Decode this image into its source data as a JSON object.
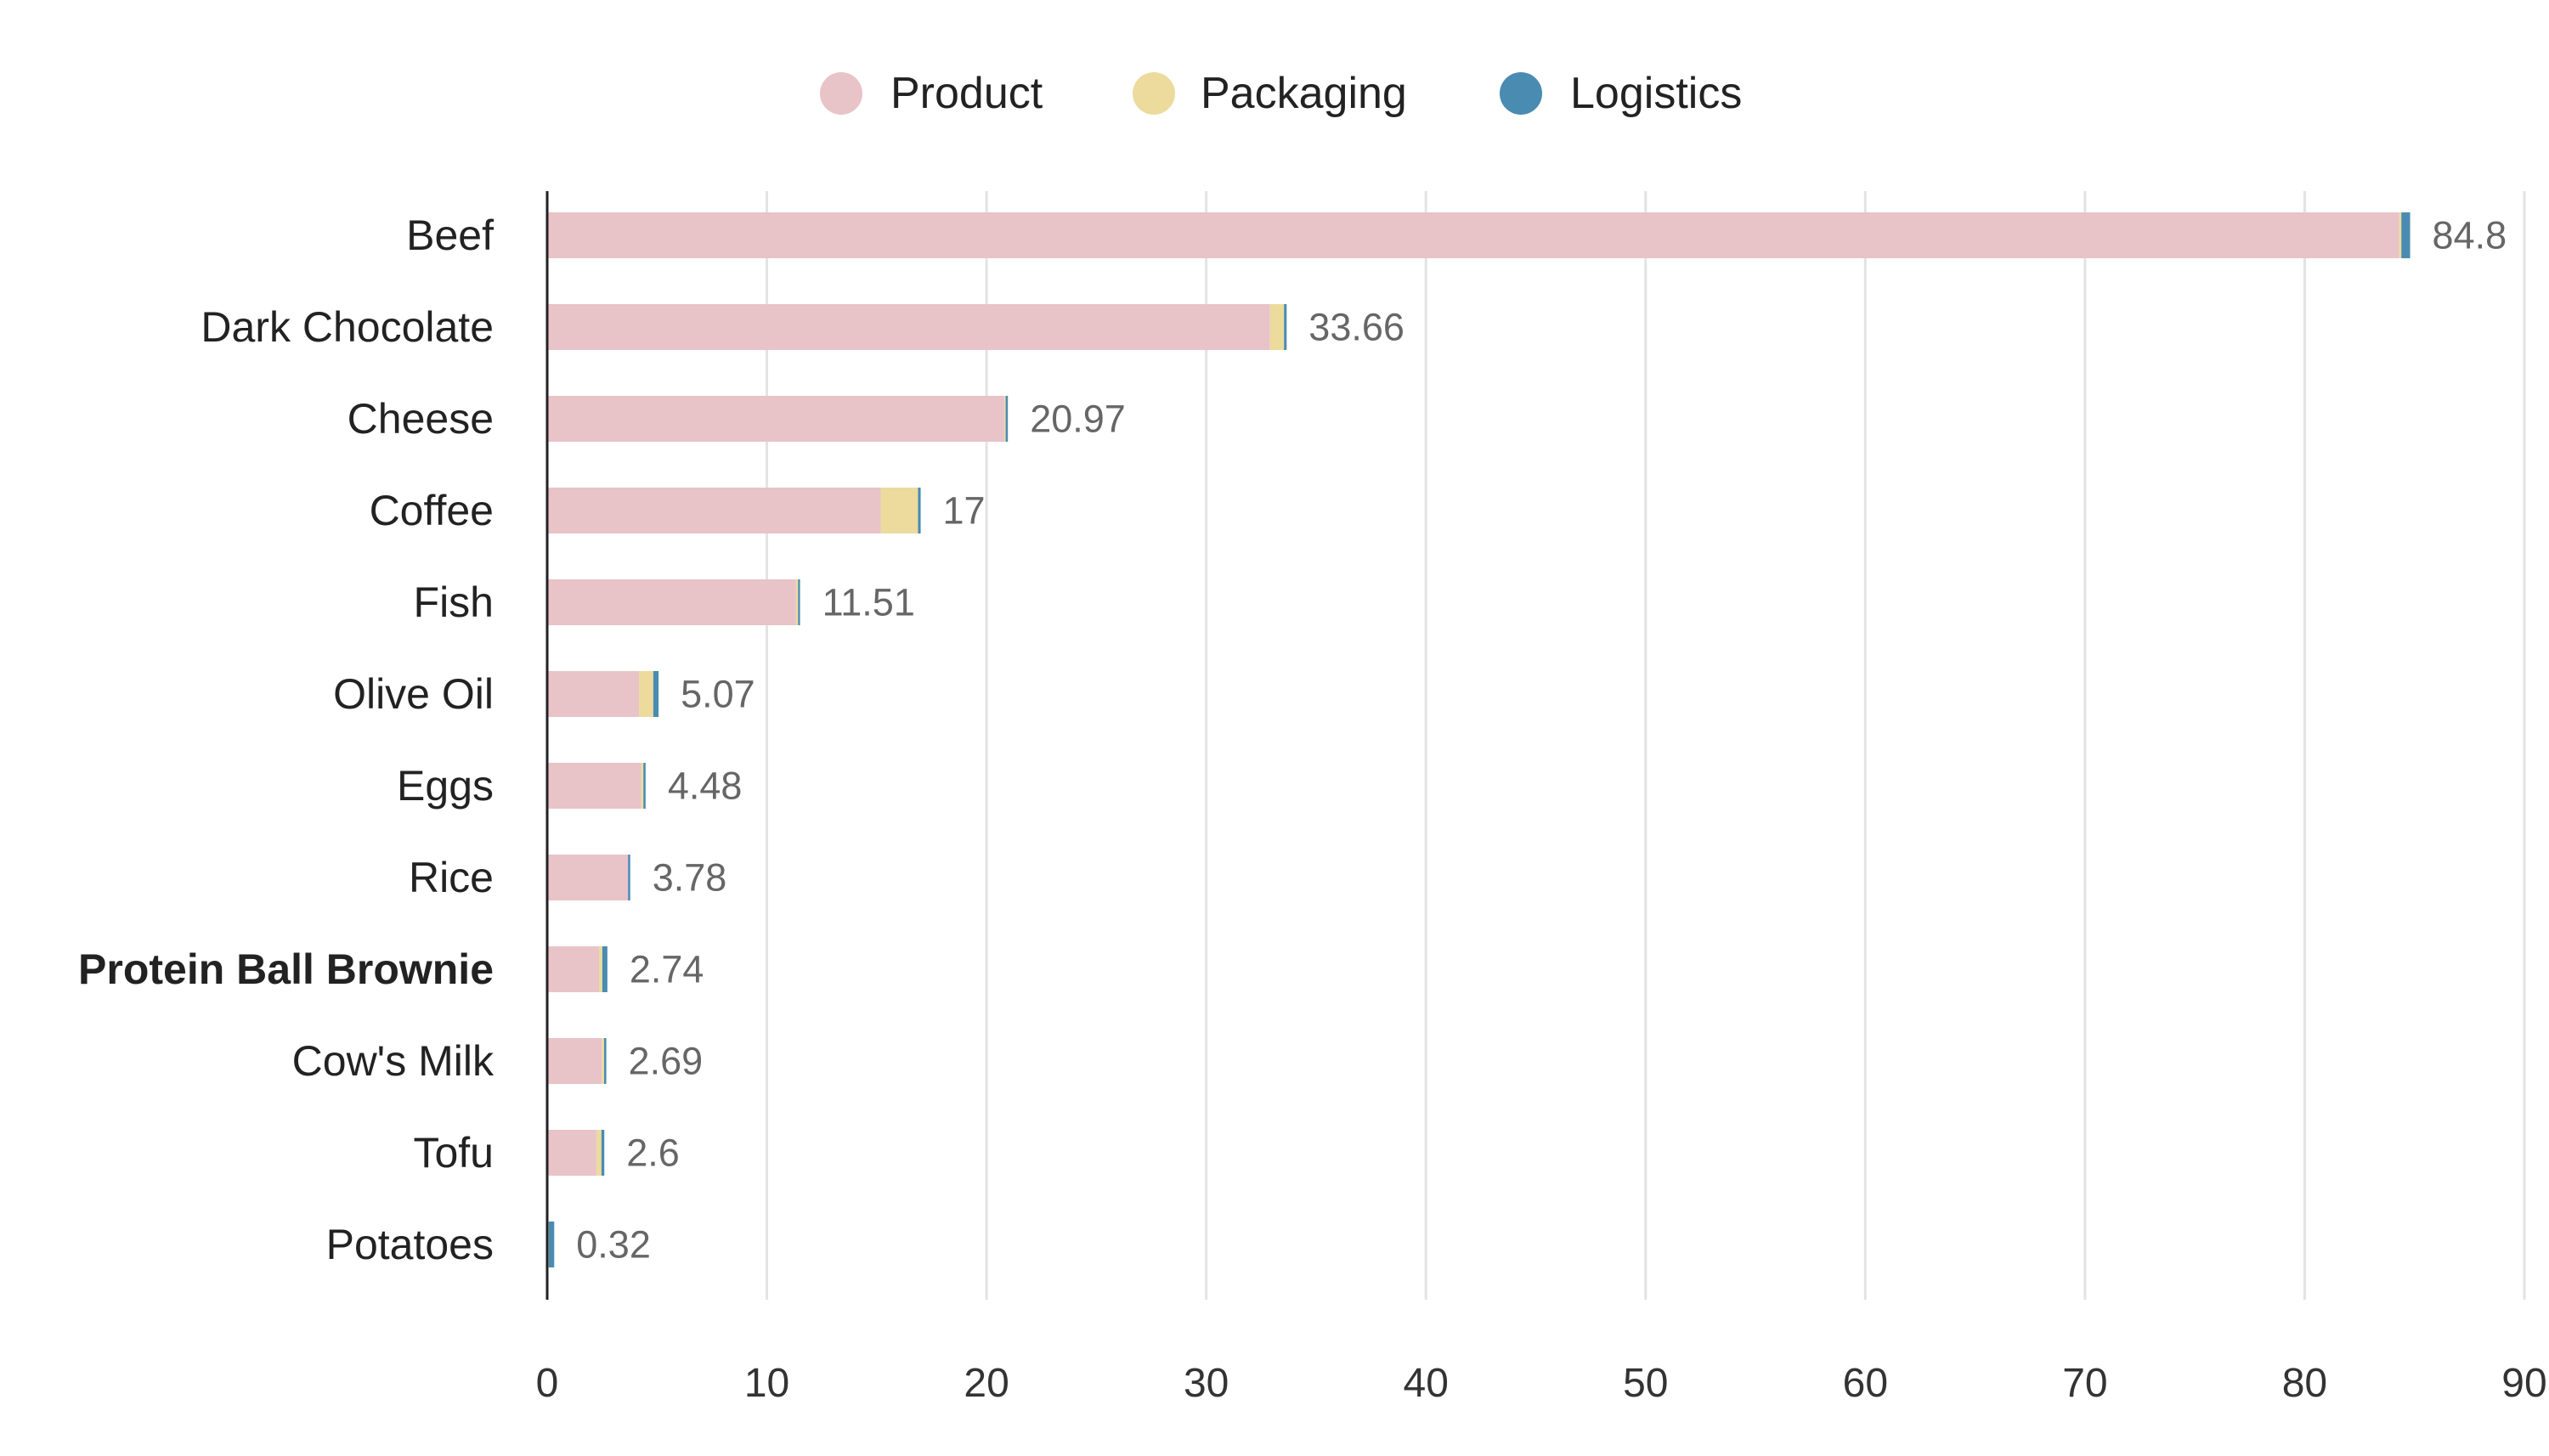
{
  "chart_data": {
    "type": "bar",
    "orientation": "horizontal",
    "stacked": true,
    "categories": [
      "Beef",
      "Dark Chocolate",
      "Cheese",
      "Coffee",
      "Fish",
      "Olive Oil",
      "Eggs",
      "Rice",
      "Protein Ball Brownie",
      "Cow's Milk",
      "Tofu",
      "Potatoes"
    ],
    "highlighted_category": "Protein Ball Brownie",
    "totals": [
      "84.8",
      "33.66",
      "20.97",
      "17",
      "11.51",
      "5.07",
      "4.48",
      "3.78",
      "2.74",
      "2.69",
      "2.6",
      "0.32"
    ],
    "series": [
      {
        "name": "Product",
        "color": "#e8c3c8",
        "values": [
          84.3,
          32.9,
          20.82,
          15.18,
          11.33,
          4.18,
          4.28,
          3.68,
          2.36,
          2.49,
          2.24,
          0.05
        ]
      },
      {
        "name": "Packaging",
        "color": "#ecdb9d",
        "values": [
          0.1,
          0.64,
          0.05,
          1.7,
          0.09,
          0.65,
          0.1,
          0,
          0.15,
          0.1,
          0.23,
          0.02
        ]
      },
      {
        "name": "Logistics",
        "color": "#4a8bb2",
        "values": [
          0.4,
          0.12,
          0.1,
          0.12,
          0.09,
          0.24,
          0.1,
          0.1,
          0.23,
          0.1,
          0.13,
          0.25
        ]
      }
    ],
    "xlim": [
      0,
      90
    ],
    "xticks": [
      "0",
      "10",
      "20",
      "30",
      "40",
      "50",
      "60",
      "70",
      "80",
      "90"
    ],
    "grid": "vertical",
    "legend": "top-center",
    "xlabel": "",
    "ylabel": "",
    "title": ""
  }
}
